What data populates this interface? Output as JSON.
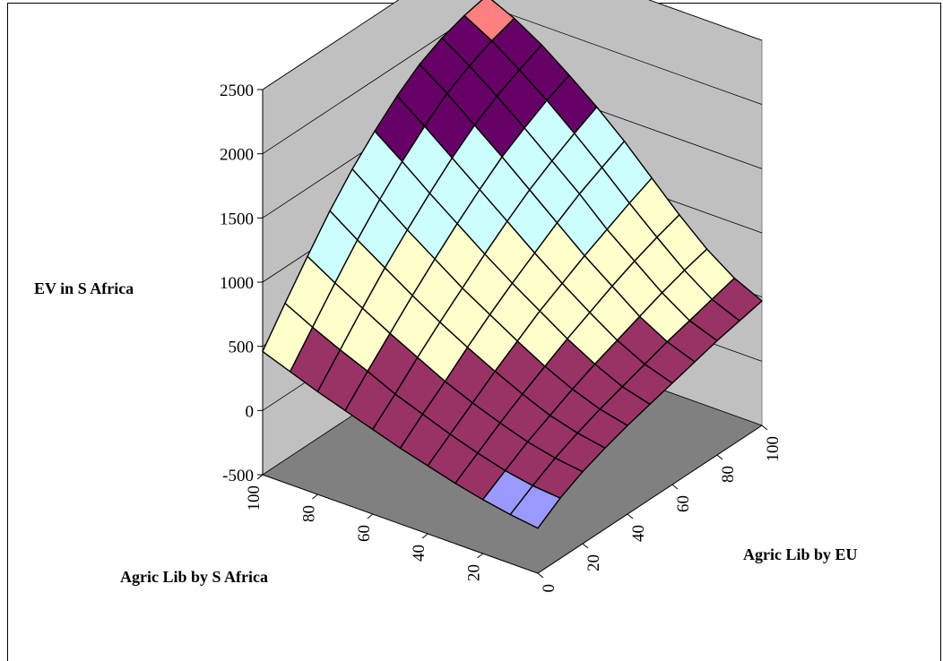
{
  "chart_data": {
    "type": "surface",
    "zlabel": "EV in S Africa",
    "xlabel": "Agric Lib by EU",
    "ylabel": "Agric Lib by S Africa",
    "zlim": [
      -500,
      2500
    ],
    "z_ticks": [
      "2500",
      "2000",
      "1500",
      "1000",
      "500",
      "0",
      "-500"
    ],
    "x_ticks": [
      "0",
      "20",
      "40",
      "60",
      "80",
      "100"
    ],
    "y_ticks": [
      "20",
      "40",
      "60",
      "80",
      "100"
    ],
    "grid": true,
    "band_colors": {
      "below_0": "#9999ff",
      "0_500": "#993366",
      "500_1000": "#ffffcc",
      "1000_1500": "#ccffff",
      "1500_2000": "#660066",
      "above_2000": "#ff8080"
    },
    "wall_color": "#c0c0c0",
    "floor_color": "#808080",
    "grid_size": 10,
    "surface_values": [
      [
        -150,
        -30,
        60,
        130,
        190,
        240,
        290,
        340,
        390,
        430,
        470
      ],
      [
        -120,
        -10,
        90,
        170,
        240,
        300,
        360,
        420,
        470,
        520,
        570
      ],
      [
        -80,
        30,
        140,
        230,
        320,
        400,
        470,
        540,
        610,
        670,
        720
      ],
      [
        -30,
        90,
        210,
        320,
        420,
        520,
        610,
        700,
        780,
        850,
        910
      ],
      [
        30,
        160,
        290,
        420,
        540,
        660,
        760,
        860,
        950,
        1040,
        1120
      ],
      [
        90,
        240,
        380,
        530,
        670,
        800,
        920,
        1040,
        1150,
        1240,
        1330
      ],
      [
        160,
        320,
        490,
        650,
        800,
        950,
        1090,
        1220,
        1330,
        1430,
        1520
      ],
      [
        230,
        420,
        600,
        780,
        950,
        1110,
        1260,
        1400,
        1510,
        1610,
        1690
      ],
      [
        300,
        510,
        720,
        920,
        1100,
        1270,
        1430,
        1570,
        1680,
        1770,
        1850
      ],
      [
        380,
        610,
        840,
        1060,
        1260,
        1440,
        1600,
        1740,
        1840,
        1920,
        1980
      ],
      [
        460,
        720,
        970,
        1210,
        1420,
        1600,
        1760,
        1890,
        1980,
        2040,
        2080
      ]
    ]
  }
}
